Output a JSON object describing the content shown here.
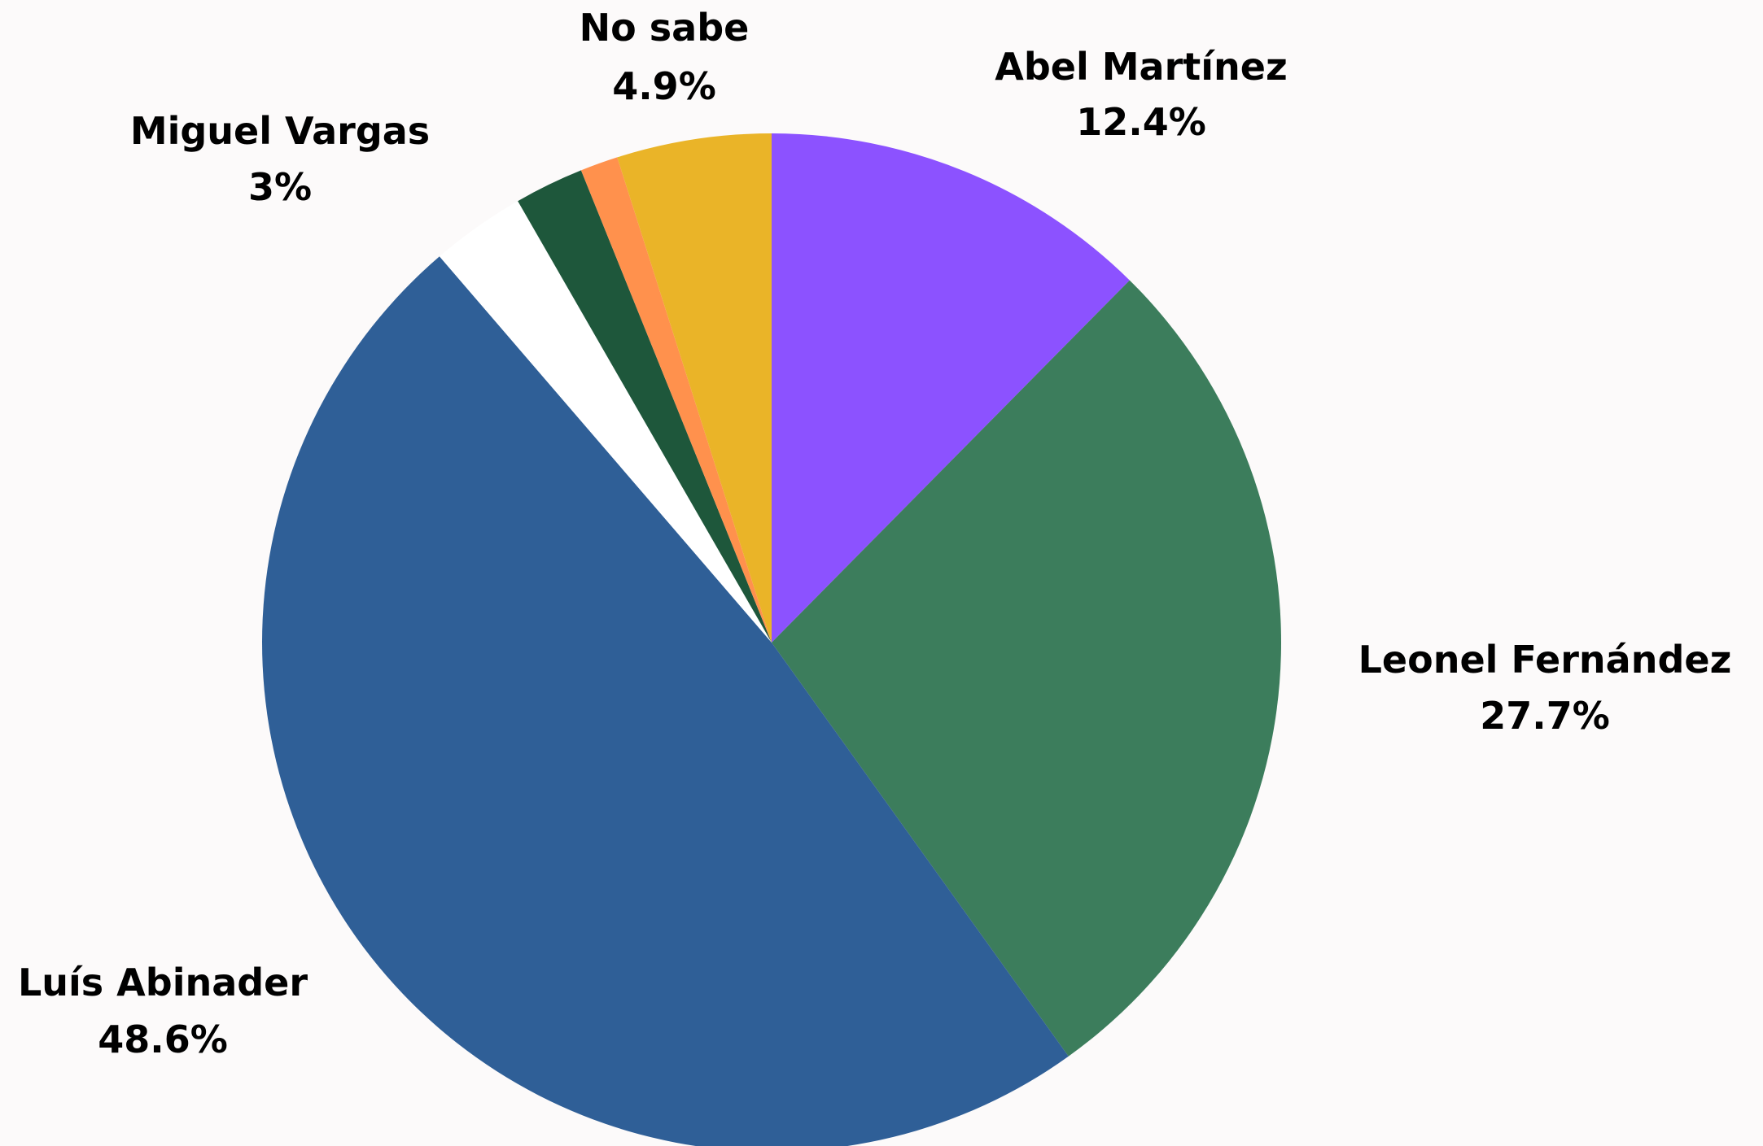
{
  "chart_data": {
    "type": "pie",
    "start_angle_deg": 0,
    "direction": "clockwise",
    "slices": [
      {
        "name": "Abel Martínez",
        "value": 12.4,
        "label": "12.4%",
        "color": "#8c52ff",
        "show_label": true
      },
      {
        "name": "Leonel Fernández",
        "value": 27.7,
        "label": "27.7%",
        "color": "#3c7d5c",
        "show_label": true
      },
      {
        "name": "Luís Abinader",
        "value": 48.6,
        "label": "48.6%",
        "color": "#2f5f97",
        "show_label": true
      },
      {
        "name": "Miguel Vargas",
        "value": 3.0,
        "label": "3%",
        "color": "#ffffff",
        "show_label": true
      },
      {
        "name": "",
        "value": 2.2,
        "label": "",
        "color": "#1e573b",
        "show_label": false
      },
      {
        "name": "",
        "value": 1.2,
        "label": "",
        "color": "#ff914d",
        "show_label": false
      },
      {
        "name": "No sabe",
        "value": 4.9,
        "label": "4.9%",
        "color": "#eab428",
        "show_label": true
      }
    ],
    "title": "",
    "legend": "none"
  }
}
